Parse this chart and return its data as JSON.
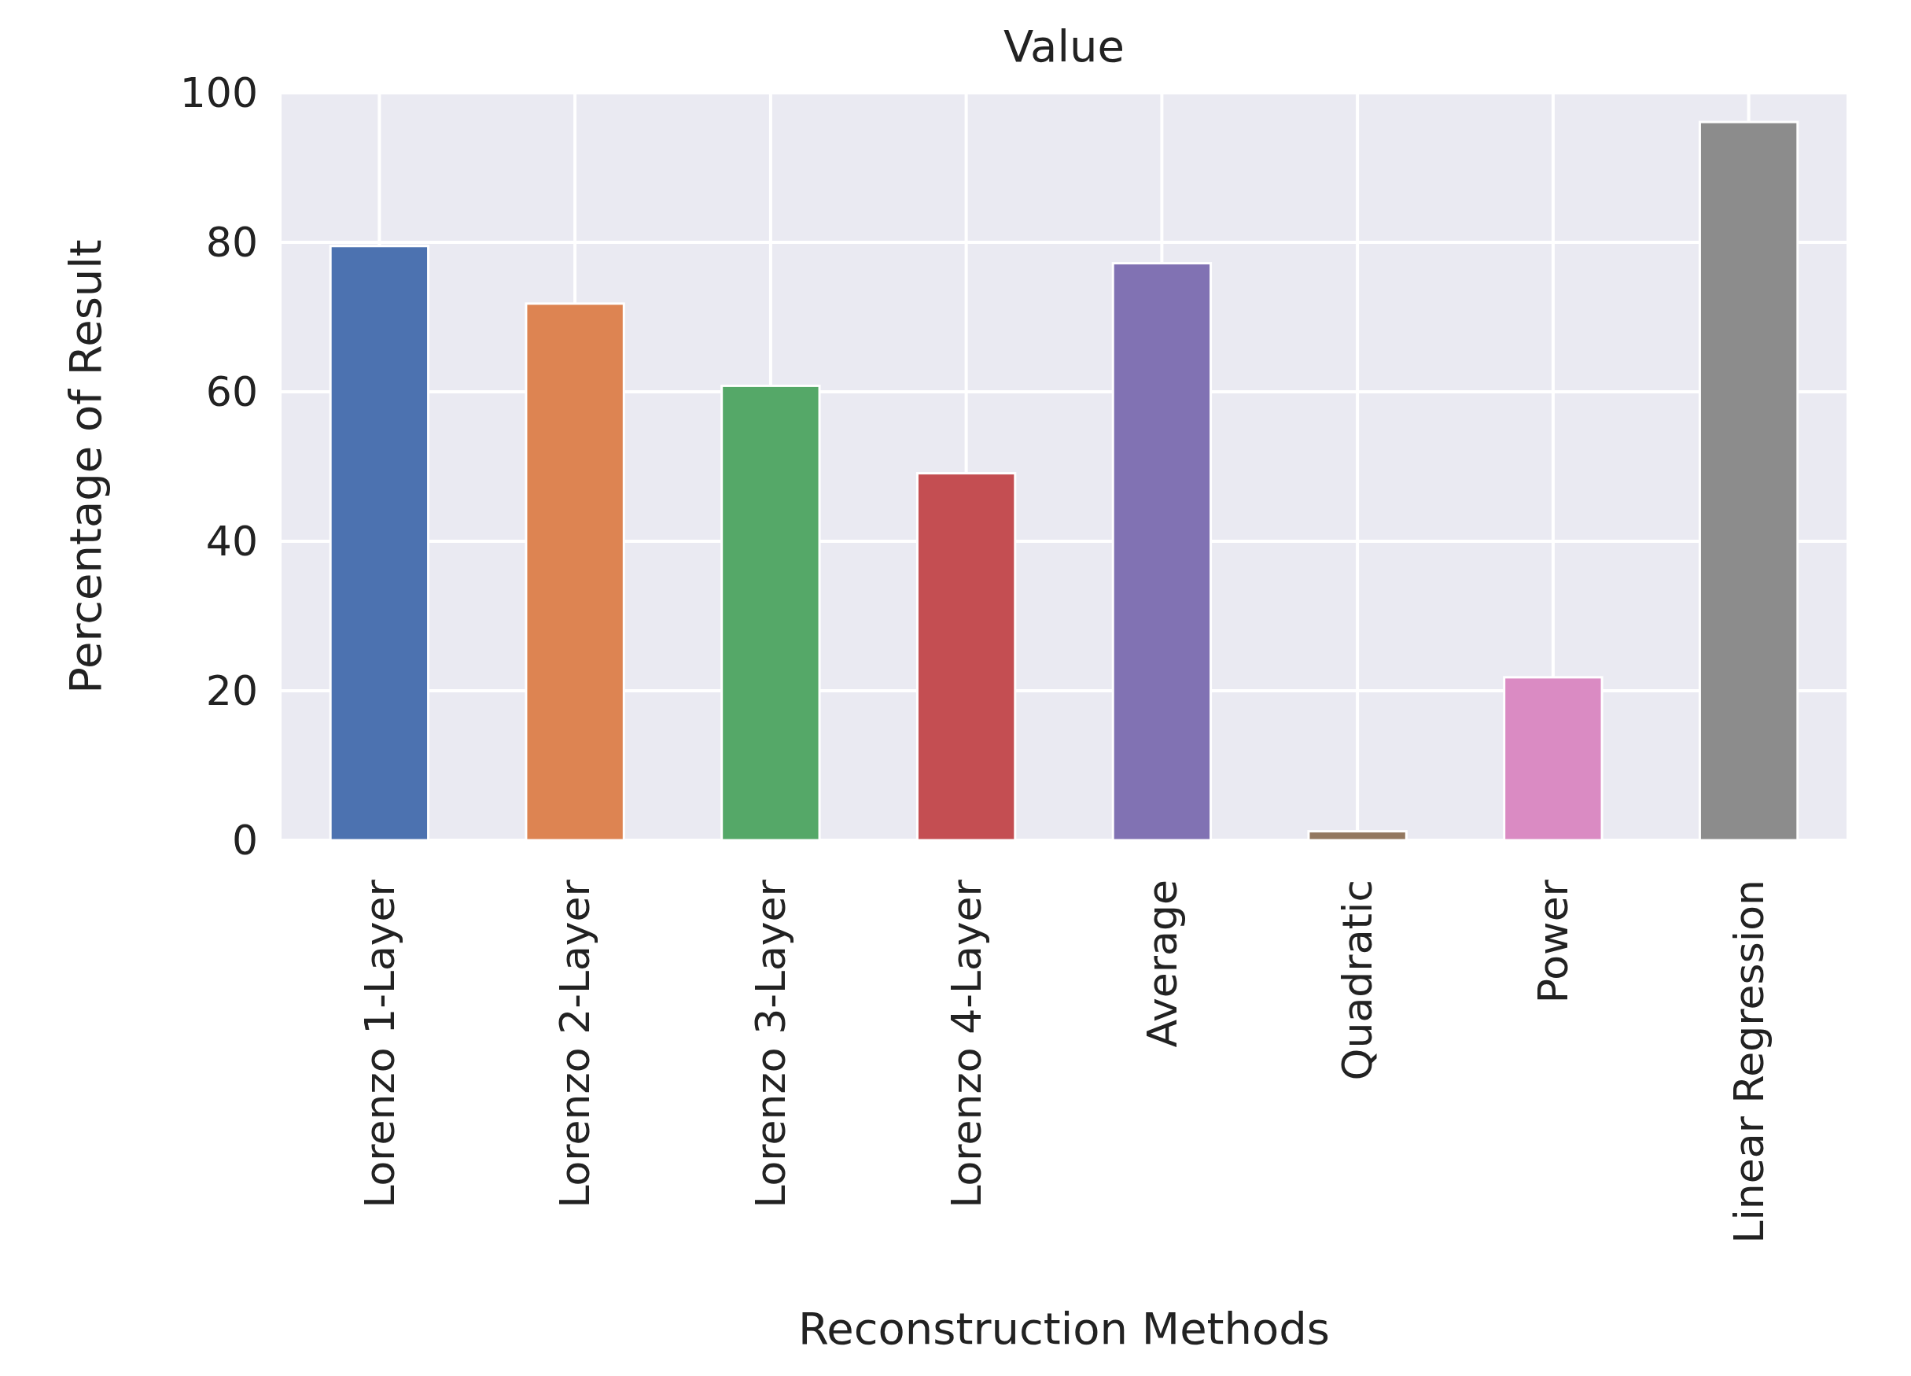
{
  "chart_data": {
    "type": "bar",
    "title": "Value",
    "xlabel": "Reconstruction Methods",
    "ylabel": "Percentage of Result",
    "categories": [
      "Lorenzo 1-Layer",
      "Lorenzo 2-Layer",
      "Lorenzo 3-Layer",
      "Lorenzo 4-Layer",
      "Average",
      "Quadratic",
      "Power",
      "Linear Regression"
    ],
    "values": [
      79.5,
      71.8,
      60.8,
      49.1,
      77.2,
      1.2,
      21.8,
      96.1
    ],
    "colors": [
      "#4c72b0",
      "#dd8452",
      "#55a868",
      "#c44e52",
      "#8172b3",
      "#937860",
      "#da8bc3",
      "#8c8c8c"
    ],
    "ylim": [
      0,
      100
    ],
    "yticks": [
      0,
      20,
      40,
      60,
      80,
      100
    ],
    "grid": true
  }
}
